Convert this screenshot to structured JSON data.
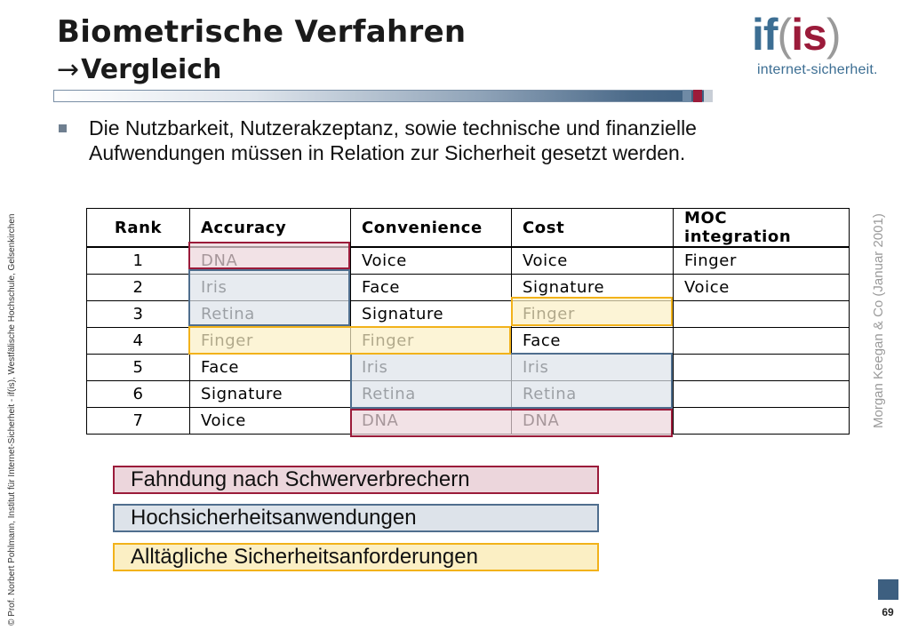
{
  "header": {
    "title": "Biometrische Verfahren",
    "subtitle_arrow": "→",
    "subtitle": "Vergleich"
  },
  "logo": {
    "if": "if",
    "open_paren": "(",
    "is": "is",
    "close_paren": ")",
    "subtitle": "internet-sicherheit."
  },
  "bullet": {
    "text": "Die Nutzbarkeit, Nutzerakzeptanz, sowie technische und finanzielle Aufwendungen müssen in Relation zur Sicherheit gesetzt werden."
  },
  "table": {
    "headers": [
      "Rank",
      "Accuracy",
      "Convenience",
      "Cost",
      "MOC integration"
    ],
    "rows": [
      [
        "1",
        "DNA",
        "Voice",
        "Voice",
        "Finger"
      ],
      [
        "2",
        "Iris",
        "Face",
        "Signature",
        "Voice"
      ],
      [
        "3",
        "Retina",
        "Signature",
        "Finger",
        ""
      ],
      [
        "4",
        "Finger",
        "Finger",
        "Face",
        ""
      ],
      [
        "5",
        "Face",
        "Iris",
        "Iris",
        ""
      ],
      [
        "6",
        "Signature",
        "Retina",
        "Retina",
        ""
      ],
      [
        "7",
        "Voice",
        "DNA",
        "DNA",
        ""
      ]
    ]
  },
  "legend": [
    {
      "label": "Fahndung nach Schwerverbrechern",
      "fill": "#ecd6dc",
      "border": "#9b1b3a"
    },
    {
      "label": "Hochsicherheitsanwendungen",
      "fill": "#dde3ea",
      "border": "#4f6e8e"
    },
    {
      "label": "Alltägliche Sicherheitsanforderungen",
      "fill": "#fbefc4",
      "border": "#f2b21a"
    }
  ],
  "source": "Morgan Keegan & Co (Januar 2001)",
  "credit": "© Prof.  Norbert Pohlmann, Institut für Internet-Sicherheit - if(is), Westfälische Hochschule, Gelsenkirchen",
  "page_number": "69"
}
